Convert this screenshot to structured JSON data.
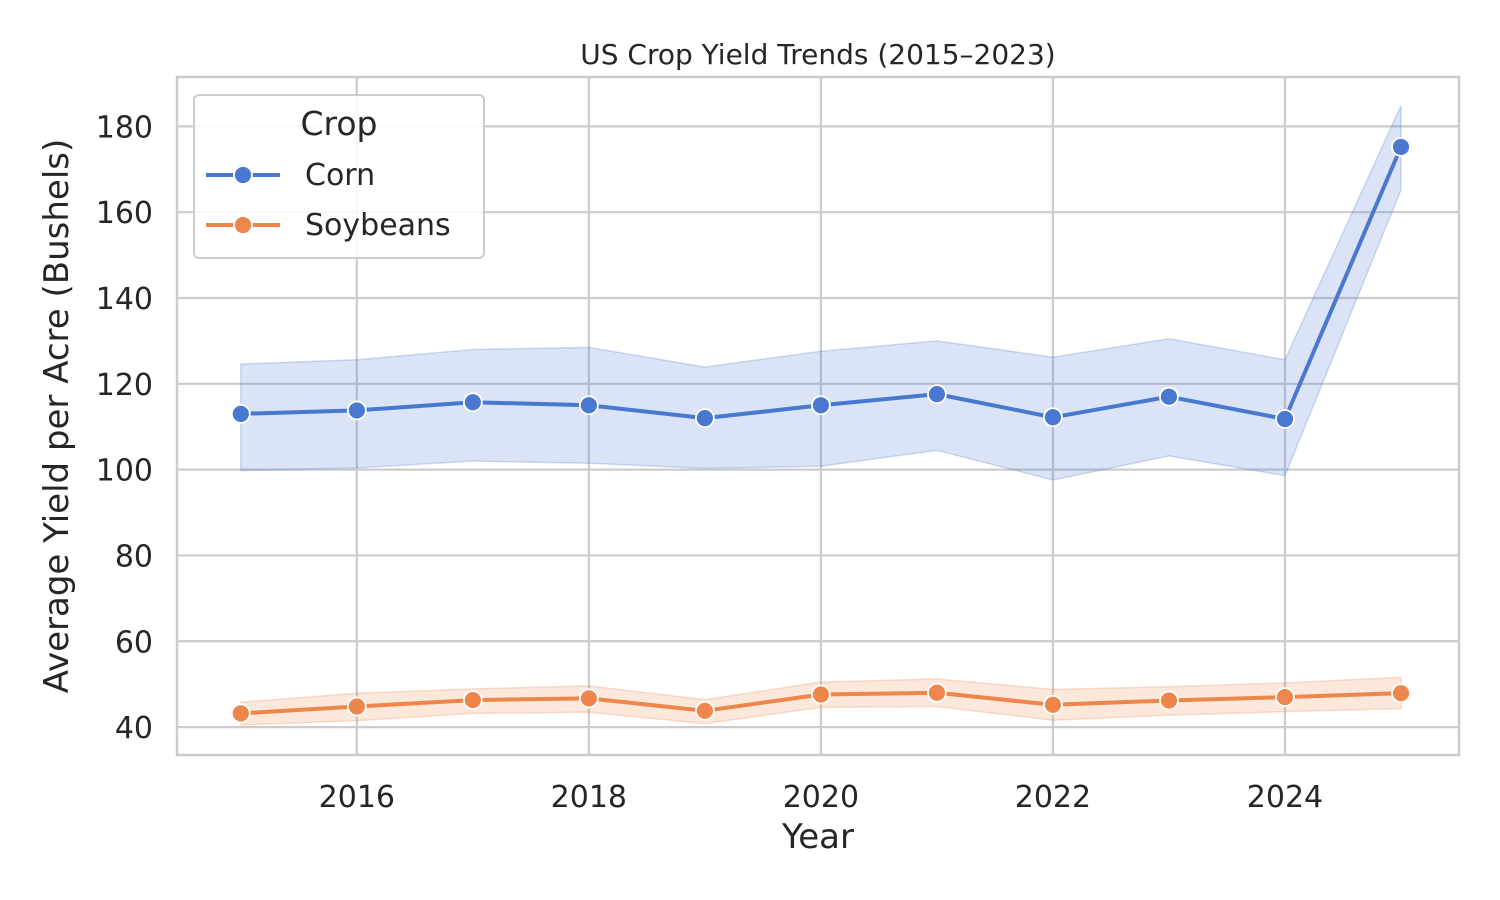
{
  "chart_data": {
    "type": "line",
    "title": "US Crop Yield Trends (2015–2023)",
    "xlabel": "Year",
    "ylabel": "Average Yield per Acre (Bushels)",
    "xlim": [
      2014.45,
      2025.5
    ],
    "ylim": [
      33.5,
      191.5
    ],
    "x_ticks": [
      2016,
      2018,
      2020,
      2022,
      2024
    ],
    "y_ticks": [
      40,
      60,
      80,
      100,
      120,
      140,
      160,
      180
    ],
    "grid": true,
    "legend": {
      "title": "Crop",
      "placement": "top-left"
    },
    "x": [
      2015,
      2016,
      2017,
      2018,
      2019,
      2020,
      2021,
      2022,
      2023,
      2024,
      2025
    ],
    "series": [
      {
        "name": "Corn",
        "color": "#4878d0",
        "values": [
          113.0,
          113.8,
          115.7,
          115.0,
          112.0,
          115.0,
          117.6,
          112.2,
          117.0,
          111.8,
          175.2
        ],
        "ci_low": [
          99.8,
          100.4,
          102.0,
          101.5,
          100.3,
          100.8,
          104.5,
          97.6,
          103.2,
          98.6,
          165.2
        ],
        "ci_high": [
          124.6,
          125.6,
          128.0,
          128.5,
          123.9,
          127.6,
          130.0,
          126.2,
          130.5,
          125.6,
          184.8
        ]
      },
      {
        "name": "Soybeans",
        "color": "#ee854a",
        "values": [
          43.2,
          44.8,
          46.3,
          46.7,
          43.8,
          47.6,
          48.0,
          45.2,
          46.2,
          47.0,
          47.9
        ],
        "ci_low": [
          40.5,
          41.5,
          43.2,
          43.5,
          40.8,
          44.6,
          44.8,
          41.6,
          42.8,
          43.6,
          44.3
        ],
        "ci_high": [
          45.8,
          47.9,
          48.9,
          49.6,
          46.4,
          50.5,
          51.2,
          48.8,
          49.4,
          50.3,
          51.6
        ]
      }
    ]
  }
}
